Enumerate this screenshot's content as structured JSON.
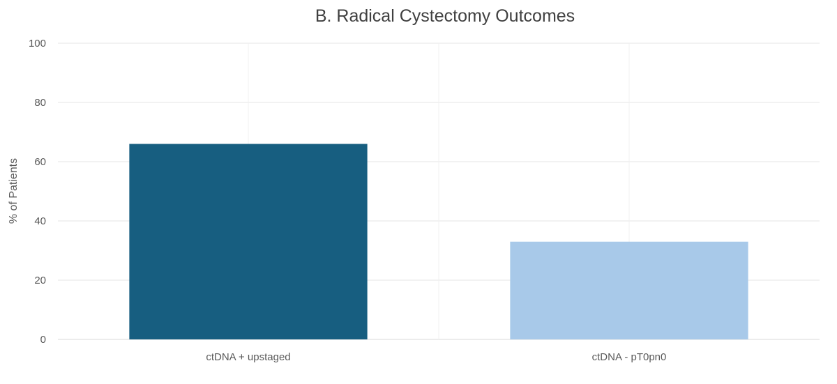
{
  "chart_data": {
    "type": "bar",
    "title": "B. Radical Cystectomy Outcomes",
    "xlabel": "",
    "ylabel": "% of Patients",
    "categories": [
      "ctDNA + upstaged",
      "ctDNA - pT0pn0"
    ],
    "values": [
      66,
      33
    ],
    "colors": [
      "#175e80",
      "#a8c9e9"
    ],
    "ylim": [
      0,
      100
    ],
    "yticks": [
      0,
      20,
      40,
      60,
      80,
      100
    ],
    "grid": true,
    "legend": "none"
  }
}
